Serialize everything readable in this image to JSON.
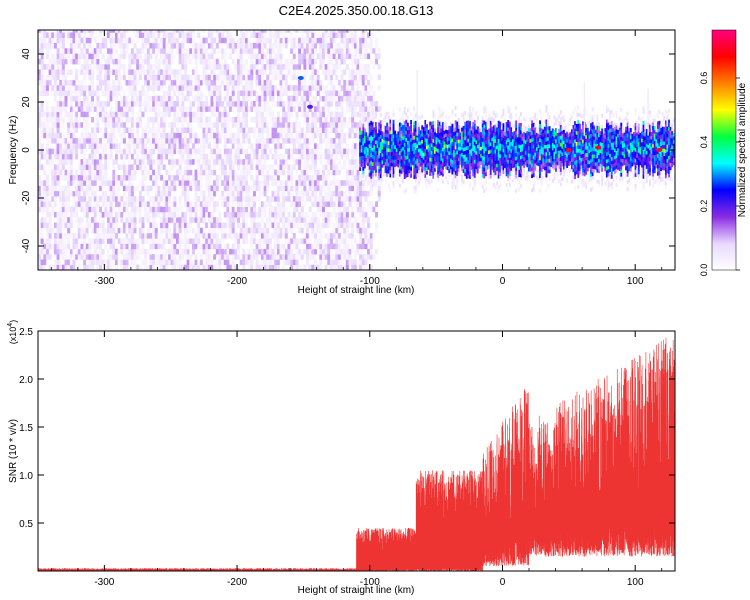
{
  "title": "C2E4.2025.350.00.18.G13",
  "chart_data": [
    {
      "type": "heatmap",
      "title": "C2E4.2025.350.00.18.G13",
      "xlabel": "Height of straight line (km)",
      "ylabel": "Frequency (Hz)",
      "xlim": [
        -350,
        130
      ],
      "ylim": [
        -50,
        50
      ],
      "xticks": [
        -300,
        -200,
        -100,
        0,
        100
      ],
      "xtick_labels": [
        "-300",
        "-200",
        "-100",
        "0",
        "100"
      ],
      "yticks": [
        -40,
        -20,
        0,
        20,
        40
      ],
      "ytick_labels": [
        "-40",
        "-20",
        "0",
        "20",
        "40"
      ],
      "noise_region": {
        "x_range": [
          -350,
          -100
        ],
        "freq_range": [
          -50,
          50
        ],
        "amplitude_range": [
          0.02,
          0.12
        ]
      },
      "signal_band": {
        "x_range": [
          -108,
          130
        ],
        "center_freq": 0,
        "half_width_hz": 6,
        "amplitude_range": [
          0.1,
          0.7
        ]
      },
      "peaks": [
        {
          "x": 50,
          "freq": 0,
          "amplitude": 0.7
        },
        {
          "x": 72,
          "freq": 1,
          "amplitude": 0.7
        },
        {
          "x": 118,
          "freq": 0,
          "amplitude": 0.7
        },
        {
          "x": -152,
          "freq": 30,
          "amplitude": 0.28
        },
        {
          "x": -145,
          "freq": 18,
          "amplitude": 0.2
        }
      ],
      "colorbar": {
        "label": "Normalized spectral amplitude",
        "range": [
          0.0,
          0.75
        ],
        "ticks": [
          0.0,
          0.2,
          0.4,
          0.6
        ],
        "tick_labels": [
          "0.0",
          "0.2",
          "0.4",
          "0.6"
        ],
        "colormap": [
          "#ffffff",
          "#e8d8ff",
          "#8a2be2",
          "#0000ff",
          "#00ffff",
          "#00ff40",
          "#ffff00",
          "#ff8000",
          "#ff0000",
          "#ff0080"
        ]
      }
    },
    {
      "type": "line",
      "title": "",
      "xlabel": "Height of straight line (km)",
      "ylabel": "SNR (10 * v/v)",
      "multiplier": "(x10",
      "multiplier_exp": "4",
      "multiplier_close": ")",
      "xlim": [
        -350,
        130
      ],
      "ylim": [
        0,
        2.5
      ],
      "xticks": [
        -300,
        -200,
        -100,
        0,
        100
      ],
      "xtick_labels": [
        "-300",
        "-200",
        "-100",
        "0",
        "100"
      ],
      "yticks": [
        0.5,
        1.0,
        1.5,
        2.0,
        2.5
      ],
      "ytick_labels": [
        "0.5",
        "1.0",
        "1.5",
        "2.0",
        "2.5"
      ],
      "color": "#ee3333",
      "segments": [
        {
          "x_range": [
            -350,
            -110
          ],
          "baseline": 0.0,
          "max": 0.03
        },
        {
          "x_range": [
            -110,
            -65
          ],
          "baseline": 0.02,
          "max": 0.45
        },
        {
          "x_range": [
            -65,
            -15
          ],
          "baseline": 0.03,
          "max": 1.05
        },
        {
          "x_range": [
            -15,
            20
          ],
          "baseline": 0.05,
          "max": 2.0
        },
        {
          "x_range": [
            20,
            130
          ],
          "baseline": 0.15,
          "max": 2.5
        }
      ]
    }
  ]
}
